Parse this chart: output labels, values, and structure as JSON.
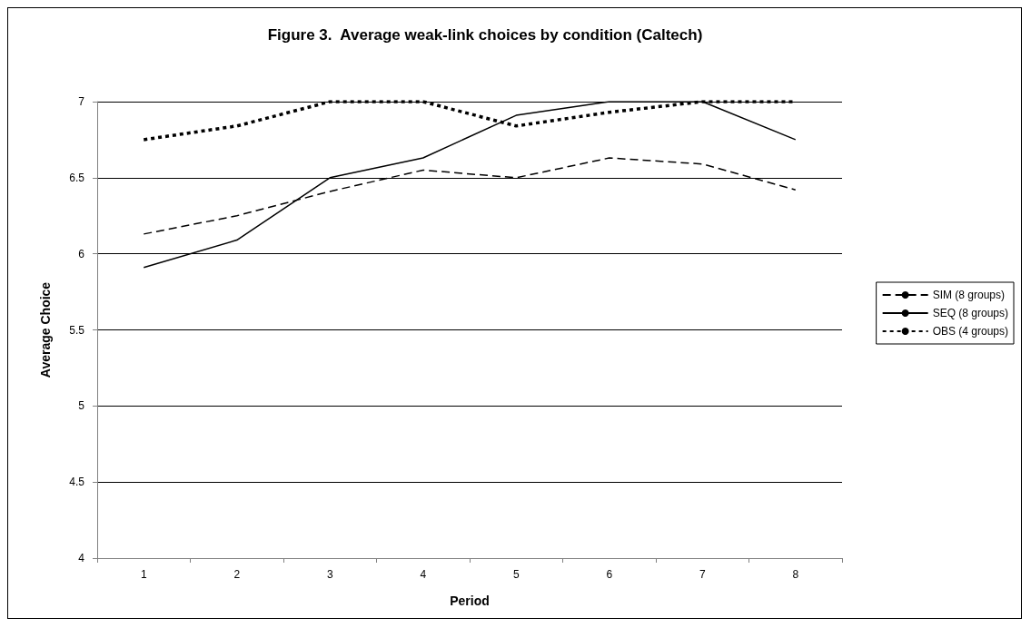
{
  "chart_data": {
    "type": "line",
    "title": "Figure 3.  Average weak-link choices by condition (Caltech)",
    "xlabel": "Period",
    "ylabel": "Average Choice",
    "categories": [
      "1",
      "2",
      "3",
      "4",
      "5",
      "6",
      "7",
      "8"
    ],
    "series": [
      {
        "name": "SIM (8 groups)",
        "color": "#000000",
        "line_style": "dashed",
        "values": [
          6.13,
          6.25,
          6.41,
          6.55,
          6.5,
          6.63,
          6.59,
          6.42
        ]
      },
      {
        "name": "SEQ (8 groups)",
        "color": "#000000",
        "line_style": "solid",
        "values": [
          5.91,
          6.09,
          6.5,
          6.63,
          6.91,
          7,
          7,
          6.75
        ]
      },
      {
        "name": "OBS (4 groups)",
        "color": "#000000",
        "line_style": "dotted",
        "values": [
          6.75,
          6.84,
          7,
          7,
          6.84,
          6.93,
          7,
          7
        ]
      }
    ],
    "ylim": [
      4,
      7
    ],
    "yticks": [
      4,
      4.5,
      5,
      5.5,
      6,
      6.5,
      7
    ],
    "grid": "y",
    "legend": "right",
    "marker": "none"
  }
}
